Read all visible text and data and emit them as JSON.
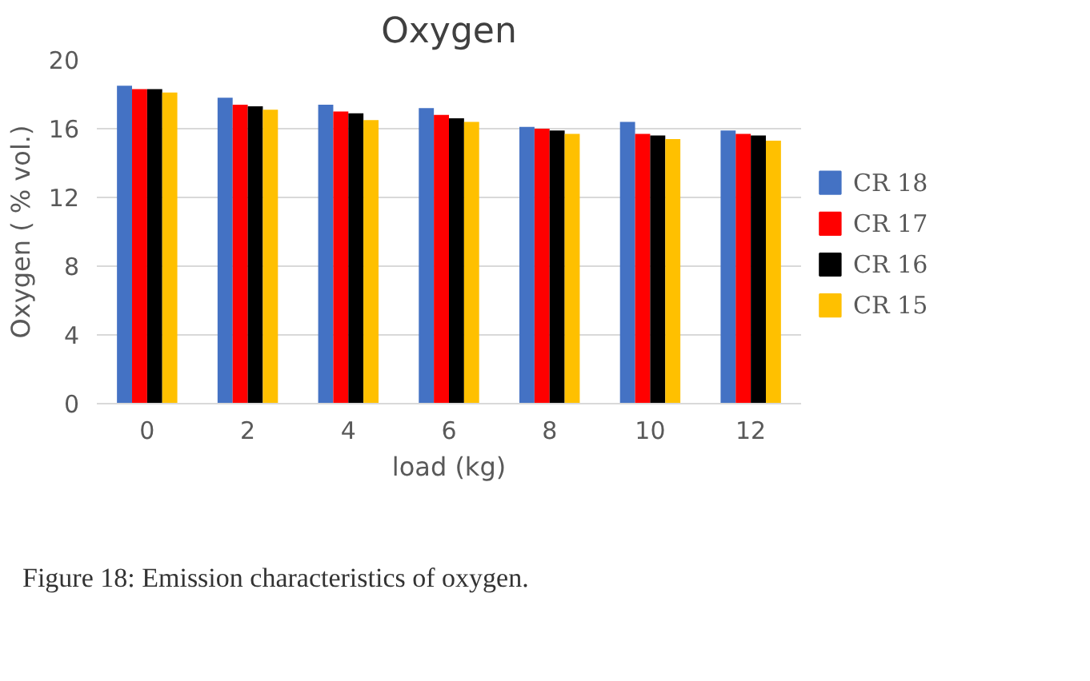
{
  "chart_data": {
    "type": "bar",
    "title": "Oxygen",
    "xlabel": "load (kg)",
    "ylabel": "Oxygen ( % vol.)",
    "categories": [
      "0",
      "2",
      "4",
      "6",
      "8",
      "10",
      "12"
    ],
    "series": [
      {
        "name": "CR 18",
        "color": "#4472c4",
        "values": [
          18.5,
          17.8,
          17.4,
          17.2,
          16.1,
          16.4,
          15.9
        ]
      },
      {
        "name": "CR 17",
        "color": "#ff0000",
        "values": [
          18.3,
          17.4,
          17.0,
          16.8,
          16.0,
          15.7,
          15.7
        ]
      },
      {
        "name": "CR 16",
        "color": "#000000",
        "values": [
          18.3,
          17.3,
          16.9,
          16.6,
          15.9,
          15.6,
          15.6
        ]
      },
      {
        "name": "CR 15",
        "color": "#ffc000",
        "values": [
          18.1,
          17.1,
          16.5,
          16.4,
          15.7,
          15.4,
          15.3
        ]
      }
    ],
    "ylim": [
      0,
      20
    ],
    "yticks": [
      0,
      4,
      8,
      12,
      16,
      20
    ],
    "grid": "y",
    "legend": "right",
    "annotations": [
      "Figure 18: Emission characteristics of oxygen."
    ]
  }
}
